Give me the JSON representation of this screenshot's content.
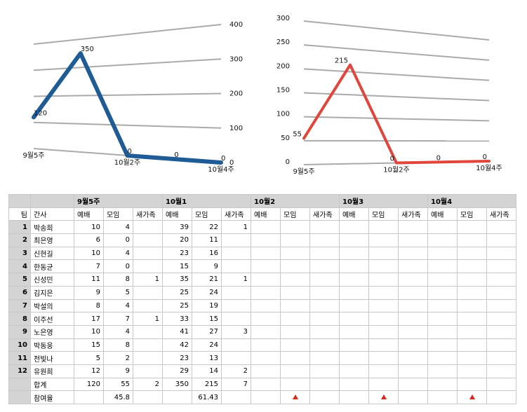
{
  "chart_data": [
    {
      "type": "line",
      "categories": [
        "9월5주",
        null,
        "10월2주",
        null,
        "10월4주"
      ],
      "values": [
        120,
        350,
        0,
        0,
        0
      ],
      "color": "#1f5b94",
      "ylim": [
        0,
        400
      ],
      "yticks": [
        0,
        100,
        200,
        300,
        400
      ],
      "grid": true,
      "y_axis_side": "right"
    },
    {
      "type": "line",
      "categories": [
        "9월5주",
        null,
        "10월2주",
        null,
        "10월4주"
      ],
      "values": [
        55,
        215,
        0,
        0,
        0
      ],
      "color": "#e0463b",
      "ylim": [
        0,
        300
      ],
      "yticks": [
        0,
        50,
        100,
        150,
        200,
        250,
        300
      ],
      "grid": true,
      "y_axis_side": "left"
    }
  ],
  "table": {
    "groups": [
      "9월5주",
      "10월1",
      "10월2",
      "10월3",
      "10월4"
    ],
    "header": [
      "팀",
      "간사",
      "예배",
      "모임",
      "새가족",
      "예배",
      "모임",
      "새가족",
      "예배",
      "모임",
      "새가족",
      "예배",
      "모임",
      "새가족",
      "예배",
      "모임",
      "새가족"
    ],
    "rows": [
      [
        1,
        "박송희",
        10,
        4,
        null,
        39,
        22,
        1,
        null,
        null,
        null,
        null,
        null,
        null,
        null,
        null,
        null
      ],
      [
        2,
        "최은영",
        6,
        0,
        null,
        20,
        11,
        null,
        null,
        null,
        null,
        null,
        null,
        null,
        null,
        null,
        null
      ],
      [
        3,
        "신현길",
        10,
        4,
        null,
        23,
        16,
        null,
        null,
        null,
        null,
        null,
        null,
        null,
        null,
        null,
        null
      ],
      [
        4,
        "한동균",
        7,
        0,
        null,
        15,
        9,
        null,
        null,
        null,
        null,
        null,
        null,
        null,
        null,
        null,
        null
      ],
      [
        5,
        "신성민",
        11,
        8,
        1,
        35,
        21,
        1,
        null,
        null,
        null,
        null,
        null,
        null,
        null,
        null,
        null
      ],
      [
        6,
        "김지은",
        9,
        5,
        null,
        25,
        24,
        null,
        null,
        null,
        null,
        null,
        null,
        null,
        null,
        null,
        null
      ],
      [
        7,
        "박설의",
        8,
        4,
        null,
        25,
        19,
        null,
        null,
        null,
        null,
        null,
        null,
        null,
        null,
        null,
        null
      ],
      [
        8,
        "이주선",
        17,
        7,
        1,
        33,
        15,
        null,
        null,
        null,
        null,
        null,
        null,
        null,
        null,
        null,
        null
      ],
      [
        9,
        "노은영",
        10,
        4,
        null,
        41,
        27,
        3,
        null,
        null,
        null,
        null,
        null,
        null,
        null,
        null,
        null
      ],
      [
        10,
        "박동웅",
        15,
        8,
        null,
        42,
        24,
        null,
        null,
        null,
        null,
        null,
        null,
        null,
        null,
        null,
        null
      ],
      [
        11,
        "전빛나",
        5,
        2,
        null,
        23,
        13,
        null,
        null,
        null,
        null,
        null,
        null,
        null,
        null,
        null,
        null
      ],
      [
        12,
        "유원희",
        12,
        9,
        null,
        29,
        14,
        2,
        null,
        null,
        null,
        null,
        null,
        null,
        null,
        null,
        null
      ],
      [
        null,
        "합계",
        120,
        55,
        2,
        350,
        215,
        7,
        null,
        null,
        null,
        null,
        null,
        null,
        null,
        null,
        null
      ],
      [
        null,
        "참여율",
        null,
        45.8,
        null,
        null,
        61.43,
        null,
        null,
        null,
        null,
        null,
        null,
        null,
        null,
        null,
        null
      ]
    ]
  }
}
